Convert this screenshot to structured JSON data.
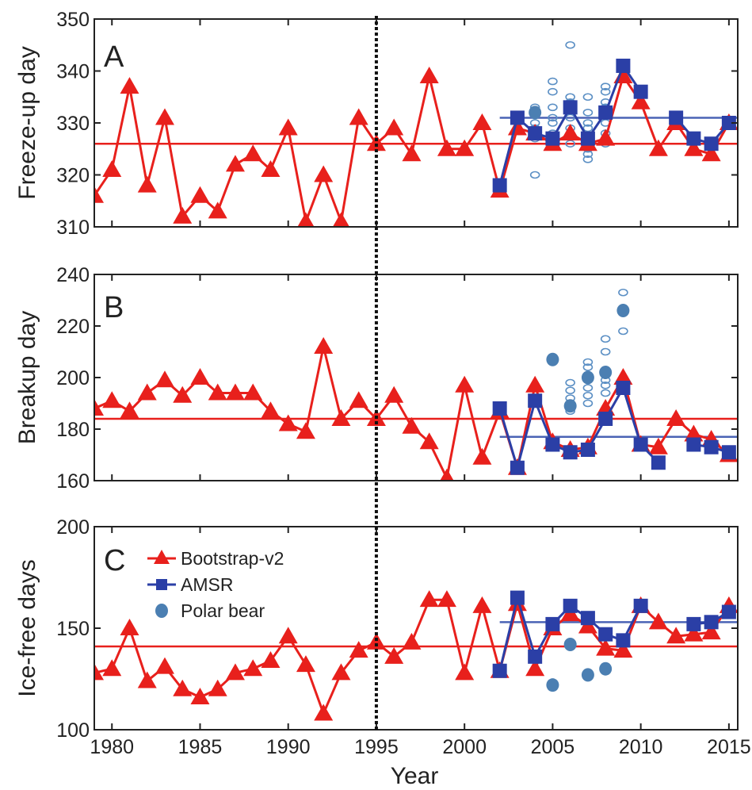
{
  "chart_data": [
    {
      "type": "line",
      "panel_label": "A",
      "ylabel": "Freeze-up day",
      "ylim": [
        310,
        350
      ],
      "yticks": [
        310,
        320,
        330,
        340,
        350
      ],
      "xlim": [
        1979,
        2015.5
      ],
      "bootstrap_mean": 326,
      "amsr_mean": 331,
      "series": [
        {
          "name": "Bootstrap-v2",
          "color": "#e8201c",
          "marker": "triangle",
          "x": [
            1979,
            1980,
            1981,
            1982,
            1983,
            1984,
            1985,
            1986,
            1987,
            1988,
            1989,
            1990,
            1991,
            1992,
            1993,
            1994,
            1995,
            1996,
            1997,
            1998,
            1999,
            2000,
            2001,
            2002,
            2003,
            2004,
            2005,
            2006,
            2007,
            2008,
            2009,
            2010,
            2011,
            2012,
            2013,
            2014,
            2015
          ],
          "values": [
            316,
            321,
            337,
            318,
            331,
            312,
            316,
            313,
            322,
            324,
            321,
            329,
            311,
            320,
            311,
            331,
            326,
            329,
            324,
            339,
            325,
            325,
            330,
            317,
            329,
            328,
            326,
            328,
            326,
            327,
            339,
            334,
            325,
            330,
            325,
            324,
            330
          ]
        },
        {
          "name": "AMSR",
          "color": "#2b3fa6",
          "marker": "square",
          "x": [
            2002,
            2003,
            2004,
            2005,
            2006,
            2007,
            2008,
            2009,
            2010,
            2011,
            2012,
            2013,
            2014,
            2015
          ],
          "values": [
            318,
            331,
            328,
            327,
            333,
            327,
            332,
            341,
            336,
            null,
            331,
            327,
            326,
            330
          ]
        }
      ],
      "polar_bear_open": [
        [
          2004,
          320
        ],
        [
          2004,
          327
        ],
        [
          2004,
          329
        ],
        [
          2004,
          330
        ],
        [
          2004,
          332
        ],
        [
          2004,
          333
        ],
        [
          2005,
          328
        ],
        [
          2005,
          330
        ],
        [
          2005,
          331
        ],
        [
          2005,
          333
        ],
        [
          2005,
          336
        ],
        [
          2005,
          338
        ],
        [
          2006,
          326
        ],
        [
          2006,
          329
        ],
        [
          2006,
          331
        ],
        [
          2006,
          334
        ],
        [
          2006,
          335
        ],
        [
          2006,
          345
        ],
        [
          2007,
          323
        ],
        [
          2007,
          324
        ],
        [
          2007,
          325
        ],
        [
          2007,
          327
        ],
        [
          2007,
          329
        ],
        [
          2007,
          330
        ],
        [
          2007,
          332
        ],
        [
          2007,
          335
        ],
        [
          2008,
          326
        ],
        [
          2008,
          328
        ],
        [
          2008,
          330
        ],
        [
          2008,
          332
        ],
        [
          2008,
          333
        ],
        [
          2008,
          334
        ],
        [
          2008,
          336
        ],
        [
          2008,
          337
        ]
      ],
      "polar_bear_filled": [
        [
          2004,
          332
        ]
      ]
    },
    {
      "type": "line",
      "panel_label": "B",
      "ylabel": "Breakup day",
      "ylim": [
        160,
        240
      ],
      "yticks": [
        160,
        180,
        200,
        220,
        240
      ],
      "xlim": [
        1979,
        2015.5
      ],
      "bootstrap_mean": 184,
      "amsr_mean": 177,
      "series": [
        {
          "name": "Bootstrap-v2",
          "color": "#e8201c",
          "marker": "triangle",
          "x": [
            1979,
            1980,
            1981,
            1982,
            1983,
            1984,
            1985,
            1986,
            1987,
            1988,
            1989,
            1990,
            1991,
            1992,
            1993,
            1994,
            1995,
            1996,
            1997,
            1998,
            1999,
            2000,
            2001,
            2002,
            2003,
            2004,
            2005,
            2006,
            2007,
            2008,
            2009,
            2010,
            2011,
            2012,
            2013,
            2014,
            2015
          ],
          "values": [
            188,
            191,
            187,
            194,
            199,
            193,
            200,
            194,
            194,
            194,
            187,
            182,
            179,
            212,
            184,
            191,
            184,
            193,
            181,
            175,
            161,
            197,
            169,
            187,
            165,
            197,
            175,
            172,
            173,
            188,
            200,
            174,
            173,
            184,
            178,
            176,
            170
          ]
        },
        {
          "name": "AMSR",
          "color": "#2b3fa6",
          "marker": "square",
          "x": [
            2002,
            2003,
            2004,
            2005,
            2006,
            2007,
            2008,
            2009,
            2010,
            2011,
            2012,
            2013,
            2014,
            2015
          ],
          "values": [
            188,
            165,
            191,
            174,
            171,
            172,
            184,
            196,
            174,
            167,
            null,
            174,
            173,
            171
          ]
        }
      ],
      "polar_bear_open": [
        [
          2006,
          187
        ],
        [
          2006,
          190
        ],
        [
          2006,
          192
        ],
        [
          2006,
          195
        ],
        [
          2006,
          198
        ],
        [
          2007,
          190
        ],
        [
          2007,
          193
        ],
        [
          2007,
          196
        ],
        [
          2007,
          199
        ],
        [
          2007,
          201
        ],
        [
          2007,
          204
        ],
        [
          2007,
          206
        ],
        [
          2008,
          194
        ],
        [
          2008,
          197
        ],
        [
          2008,
          199
        ],
        [
          2008,
          203
        ],
        [
          2008,
          210
        ],
        [
          2008,
          215
        ],
        [
          2009,
          218
        ],
        [
          2009,
          226
        ],
        [
          2009,
          233
        ]
      ],
      "polar_bear_filled": [
        [
          2005,
          207
        ],
        [
          2006,
          189
        ],
        [
          2007,
          200
        ],
        [
          2008,
          202
        ],
        [
          2009,
          226
        ]
      ]
    },
    {
      "type": "line",
      "panel_label": "C",
      "ylabel": "Ice-free days",
      "xlabel": "Year",
      "ylim": [
        100,
        200
      ],
      "yticks": [
        100,
        150,
        200
      ],
      "xlim": [
        1979,
        2015.5
      ],
      "xticks": [
        1980,
        1985,
        1990,
        1995,
        2000,
        2005,
        2010,
        2015
      ],
      "bootstrap_mean": 141,
      "amsr_mean": 153,
      "legend": {
        "position": "top-left",
        "entries": [
          "Bootstrap-v2",
          "AMSR",
          "Polar bear"
        ]
      },
      "series": [
        {
          "name": "Bootstrap-v2",
          "color": "#e8201c",
          "marker": "triangle",
          "x": [
            1979,
            1980,
            1981,
            1982,
            1983,
            1984,
            1985,
            1986,
            1987,
            1988,
            1989,
            1990,
            1991,
            1992,
            1993,
            1994,
            1995,
            1996,
            1997,
            1998,
            1999,
            2000,
            2001,
            2002,
            2003,
            2004,
            2005,
            2006,
            2007,
            2008,
            2009,
            2010,
            2011,
            2012,
            2013,
            2014,
            2015
          ],
          "values": [
            128,
            130,
            150,
            124,
            131,
            120,
            116,
            120,
            128,
            130,
            134,
            146,
            132,
            108,
            128,
            139,
            143,
            136,
            143,
            164,
            164,
            128,
            161,
            129,
            162,
            130,
            150,
            157,
            151,
            140,
            139,
            161,
            153,
            146,
            147,
            148,
            161
          ]
        },
        {
          "name": "AMSR",
          "color": "#2b3fa6",
          "marker": "square",
          "x": [
            2002,
            2003,
            2004,
            2005,
            2006,
            2007,
            2008,
            2009,
            2010,
            2011,
            2012,
            2013,
            2014,
            2015
          ],
          "values": [
            129,
            165,
            136,
            152,
            161,
            155,
            147,
            144,
            161,
            null,
            null,
            152,
            153,
            158
          ]
        }
      ],
      "polar_bear_filled": [
        [
          2005,
          122
        ],
        [
          2006,
          142
        ],
        [
          2007,
          127
        ],
        [
          2008,
          130
        ]
      ]
    }
  ]
}
